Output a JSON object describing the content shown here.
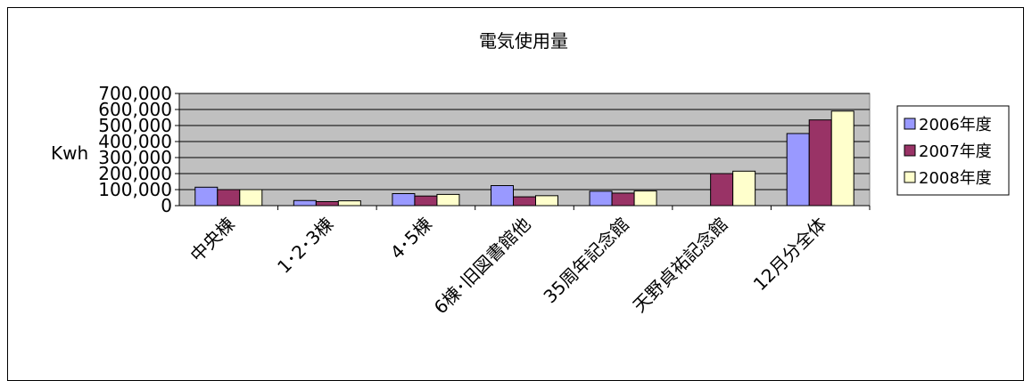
{
  "chart_data": {
    "type": "bar",
    "title": "電気使用量",
    "ylabel": "Kwh",
    "xlabel": "",
    "ylim": [
      0,
      700000
    ],
    "yticks": [
      0,
      100000,
      200000,
      300000,
      400000,
      500000,
      600000,
      700000
    ],
    "ytick_labels": [
      "0",
      "100,000",
      "200,000",
      "300,000",
      "400,000",
      "500,000",
      "600,000",
      "700,000"
    ],
    "grid": true,
    "legend_position": "right",
    "plot_background": "#c0c0c0",
    "categories": [
      "中央棟",
      "1･2･3棟",
      "4･5棟",
      "6棟･旧図書館他",
      "35周年記念館",
      "天野貞祐記念館",
      "12月分全体"
    ],
    "series": [
      {
        "name": "2006年度",
        "color": "#9999ff",
        "values": [
          115000,
          32000,
          75000,
          125000,
          90000,
          null,
          450000
        ]
      },
      {
        "name": "2007年度",
        "color": "#993366",
        "values": [
          100000,
          25000,
          60000,
          55000,
          78000,
          200000,
          535000
        ]
      },
      {
        "name": "2008年度",
        "color": "#ffffcc",
        "values": [
          100000,
          30000,
          70000,
          62000,
          92000,
          215000,
          590000
        ]
      }
    ]
  }
}
